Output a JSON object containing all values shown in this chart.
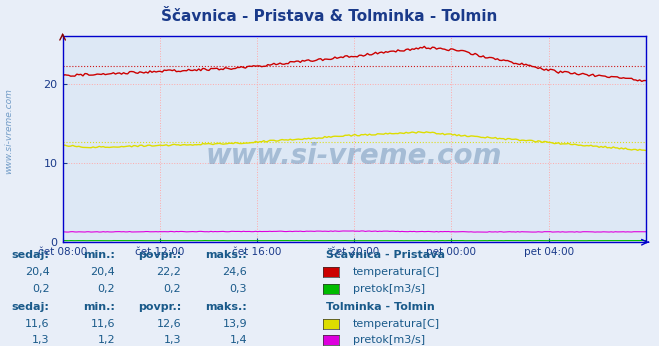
{
  "title": "Ščavnica - Pristava & Tolminka - Tolmin",
  "title_color": "#1a3a8a",
  "background_color": "#e8eef8",
  "plot_bg_color": "#dde8f5",
  "grid_color": "#ffaaaa",
  "x_label_color": "#1a3a8a",
  "y_label_color": "#1a3a8a",
  "watermark": "www.si-vreme.com",
  "x_ticks": [
    "čet 08:00",
    "čet 12:00",
    "čet 16:00",
    "čet 20:00",
    "pet 00:00",
    "pet 04:00"
  ],
  "y_ticks": [
    0,
    10,
    20
  ],
  "ylim": [
    0,
    26
  ],
  "n_points": 288,
  "station1": {
    "name": "Ščavnica - Pristava",
    "temp_color": "#cc0000",
    "flow_color": "#00bb00",
    "temp_dashed": 22.2,
    "flow_label": "pretok[m3/s]",
    "temp_label": "temperatura[C]",
    "stats": [
      "20,4",
      "20,4",
      "22,2",
      "24,6"
    ],
    "flow_stats": [
      "0,2",
      "0,2",
      "0,2",
      "0,3"
    ]
  },
  "station2": {
    "name": "Tolminka - Tolmin",
    "temp_color": "#dddd00",
    "flow_color": "#dd00dd",
    "temp_dashed": 12.6,
    "temp_label": "temperatura[C]",
    "flow_label": "pretok[m3/s]",
    "stats": [
      "11,6",
      "11,6",
      "12,6",
      "13,9"
    ],
    "flow_stats": [
      "1,3",
      "1,2",
      "1,3",
      "1,4"
    ]
  },
  "stats_color": "#1a5a8a",
  "header_color": "#1a5a8a",
  "name_color": "#1a5a8a",
  "spine_color": "#0000cc",
  "axis_color": "#0000cc"
}
